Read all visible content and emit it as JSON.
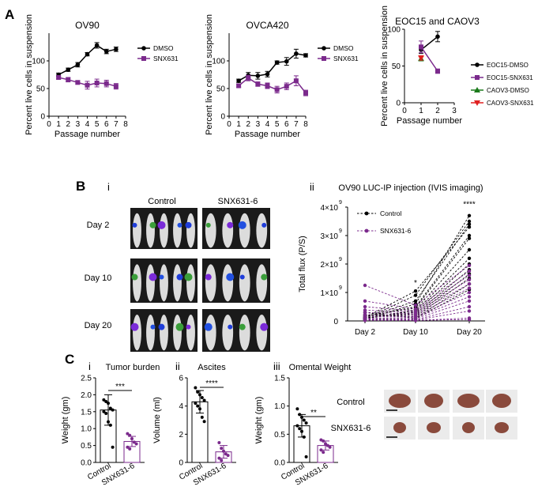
{
  "panel_labels": {
    "A": "A",
    "B": "B",
    "C": "C",
    "Bi": "i",
    "Bii": "ii",
    "Ci": "i",
    "Cii": "ii",
    "Ciii": "iii"
  },
  "colors": {
    "control": "#000000",
    "treated": "#7b2a8c",
    "caov3_dmso": "#1a7a1a",
    "caov3_snx": "#e02020"
  },
  "mice": {
    "col_control": "Control",
    "col_snx": "SNX631-6",
    "rows": [
      "Day 2",
      "Day 10",
      "Day 20"
    ]
  },
  "organs": {
    "row_control": "Control",
    "row_snx": "SNX631-6"
  },
  "chart_data": [
    {
      "id": "ov90",
      "type": "line",
      "title": "OV90",
      "xlabel": "Passage number",
      "ylabel": "Percent live cells in suspension",
      "xlim": [
        0,
        8
      ],
      "ylim": [
        0,
        150
      ],
      "xticks": [
        "0",
        "1",
        "2",
        "3",
        "4",
        "5",
        "6",
        "7",
        "8"
      ],
      "yticks": [
        "0",
        "50",
        "100"
      ],
      "series": [
        {
          "name": "DMSO",
          "x": [
            1,
            2,
            3,
            4,
            5,
            6,
            7
          ],
          "values": [
            75,
            84,
            93,
            112,
            128,
            117,
            121
          ],
          "err": [
            3,
            3,
            4,
            3,
            5,
            4,
            4
          ]
        },
        {
          "name": "SNX631",
          "x": [
            1,
            2,
            3,
            4,
            5,
            6,
            7
          ],
          "values": [
            70,
            66,
            61,
            56,
            60,
            59,
            54
          ],
          "err": [
            3,
            4,
            3,
            7,
            7,
            6,
            5
          ]
        }
      ]
    },
    {
      "id": "ovca420",
      "type": "line",
      "title": "OVCA420",
      "xlabel": "Passage number",
      "ylabel": "Percent live cells in suspension",
      "xlim": [
        0,
        8
      ],
      "ylim": [
        0,
        150
      ],
      "xticks": [
        "0",
        "1",
        "2",
        "3",
        "4",
        "5",
        "6",
        "7",
        "8"
      ],
      "yticks": [
        "0",
        "50",
        "100"
      ],
      "series": [
        {
          "name": "DMSO",
          "x": [
            1,
            2,
            3,
            4,
            5,
            6,
            7,
            8
          ],
          "values": [
            64,
            74,
            73,
            76,
            97,
            99,
            113,
            110
          ],
          "err": [
            3,
            5,
            6,
            5,
            3,
            7,
            8,
            3
          ]
        },
        {
          "name": "SNX631",
          "x": [
            1,
            2,
            3,
            4,
            5,
            6,
            7,
            8
          ],
          "values": [
            55,
            69,
            58,
            55,
            48,
            54,
            64,
            42
          ],
          "err": [
            3,
            5,
            4,
            5,
            6,
            6,
            9,
            5
          ]
        }
      ]
    },
    {
      "id": "eoc15",
      "type": "line",
      "title": "EOC15 and CAOV3",
      "xlabel": "Passage number",
      "ylabel": "Percent live cells in suspension",
      "xlim": [
        0,
        3
      ],
      "ylim": [
        0,
        100
      ],
      "xticks": [
        "0",
        "1",
        "2",
        "3"
      ],
      "yticks": [
        "0",
        "50",
        "100"
      ],
      "series": [
        {
          "name": "EOC15-DMSO",
          "x": [
            1,
            2
          ],
          "values": [
            72,
            90
          ],
          "err": [
            5,
            7
          ]
        },
        {
          "name": "EOC15-SNX631",
          "x": [
            1,
            2
          ],
          "values": [
            76,
            43
          ],
          "err": [
            8,
            3
          ]
        },
        {
          "name": "CAOV3-DMSO",
          "x": [
            1
          ],
          "values": [
            60
          ],
          "err": [
            3
          ]
        },
        {
          "name": "CAOV3-SNX631",
          "x": [
            1
          ],
          "values": [
            61
          ],
          "err": [
            3
          ]
        }
      ]
    },
    {
      "id": "ivis",
      "type": "line",
      "title": "OV90  LUC-IP injection (IVIS imaging)",
      "ylabel": "Total flux (P/S)",
      "xlabel": "",
      "categories": [
        "Day 2",
        "Day 10",
        "Day 20"
      ],
      "ylim": [
        0,
        4
      ],
      "yticks": [
        {
          "m": "0",
          "e": ""
        },
        {
          "m": "1×10",
          "e": "9"
        },
        {
          "m": "2×10",
          "e": "9"
        },
        {
          "m": "3×10",
          "e": "9"
        },
        {
          "m": "4×10",
          "e": "9"
        }
      ],
      "annotations": [
        "*",
        "****"
      ],
      "series": [
        {
          "name": "Control",
          "lines": [
            [
              0.05,
              0.6,
              3.7
            ],
            [
              0.08,
              0.9,
              3.5
            ],
            [
              0.1,
              0.7,
              3.4
            ],
            [
              0.12,
              1.05,
              3.3
            ],
            [
              0.15,
              0.5,
              3.0
            ],
            [
              0.18,
              0.45,
              2.9
            ],
            [
              0.06,
              0.4,
              2.5
            ],
            [
              0.09,
              0.35,
              2.2
            ],
            [
              0.11,
              0.3,
              2.0
            ],
            [
              0.14,
              0.25,
              1.8
            ],
            [
              0.2,
              0.2,
              1.65
            ],
            [
              0.22,
              0.15,
              1.5
            ],
            [
              0.3,
              0.1,
              1.3
            ],
            [
              0.07,
              0.08,
              1.1
            ]
          ]
        },
        {
          "name": "SNX631-6",
          "lines": [
            [
              1.25,
              0.55,
              1.95
            ],
            [
              0.7,
              0.42,
              1.75
            ],
            [
              0.5,
              0.35,
              1.6
            ],
            [
              0.38,
              0.3,
              1.45
            ],
            [
              0.3,
              0.25,
              1.3
            ],
            [
              0.22,
              0.2,
              1.15
            ],
            [
              0.15,
              0.15,
              1.0
            ],
            [
              0.1,
              0.12,
              0.85
            ],
            [
              0.05,
              0.08,
              0.7
            ],
            [
              0.03,
              0.05,
              0.5
            ],
            [
              0.04,
              0.03,
              0.35
            ],
            [
              0.08,
              0.02,
              0.1
            ],
            [
              0.02,
              0.02,
              0.05
            ]
          ]
        }
      ]
    },
    {
      "id": "tumor",
      "type": "bar",
      "title": "Tumor burden",
      "ylabel": "Weight (gm)",
      "categories": [
        "Control",
        "SNX631-6"
      ],
      "ylim": [
        0,
        2.5
      ],
      "yticks": [
        "0.0",
        "0.5",
        "1.0",
        "1.5",
        "2.0",
        "2.5"
      ],
      "values": [
        1.55,
        0.62
      ],
      "err": [
        0.45,
        0.15
      ],
      "significance": "***",
      "points": [
        [
          1.85,
          1.8,
          1.75,
          1.6,
          1.55,
          1.5,
          1.45,
          1.2,
          1.1,
          0.45
        ],
        [
          0.85,
          0.8,
          0.7,
          0.6,
          0.55,
          0.45,
          0.4
        ]
      ]
    },
    {
      "id": "ascites",
      "type": "bar",
      "title": "Ascites",
      "ylabel": "Volume (ml)",
      "categories": [
        "Control",
        "SNX631-6"
      ],
      "ylim": [
        0,
        6
      ],
      "yticks": [
        "0",
        "2",
        "4",
        "6"
      ],
      "values": [
        4.3,
        0.75
      ],
      "err": [
        0.8,
        0.45
      ],
      "significance": "****",
      "points": [
        [
          5.3,
          5.0,
          4.8,
          4.6,
          4.4,
          4.2,
          4.0,
          3.8,
          3.2,
          2.9
        ],
        [
          1.4,
          1.0,
          0.8,
          0.6,
          0.5,
          0.3,
          0.15
        ]
      ]
    },
    {
      "id": "omental",
      "type": "bar",
      "title": "Omental Weight",
      "ylabel": "Weight (gm)",
      "categories": [
        "Control",
        "SNX631-6"
      ],
      "ylim": [
        0,
        1.5
      ],
      "yticks": [
        "0.0",
        "0.5",
        "1.0",
        "1.5"
      ],
      "values": [
        0.65,
        0.3
      ],
      "err": [
        0.2,
        0.08
      ],
      "significance": "**",
      "points": [
        [
          0.95,
          0.85,
          0.8,
          0.75,
          0.7,
          0.65,
          0.6,
          0.55,
          0.45,
          0.1
        ],
        [
          0.4,
          0.38,
          0.33,
          0.3,
          0.27,
          0.22,
          0.18
        ]
      ]
    }
  ]
}
